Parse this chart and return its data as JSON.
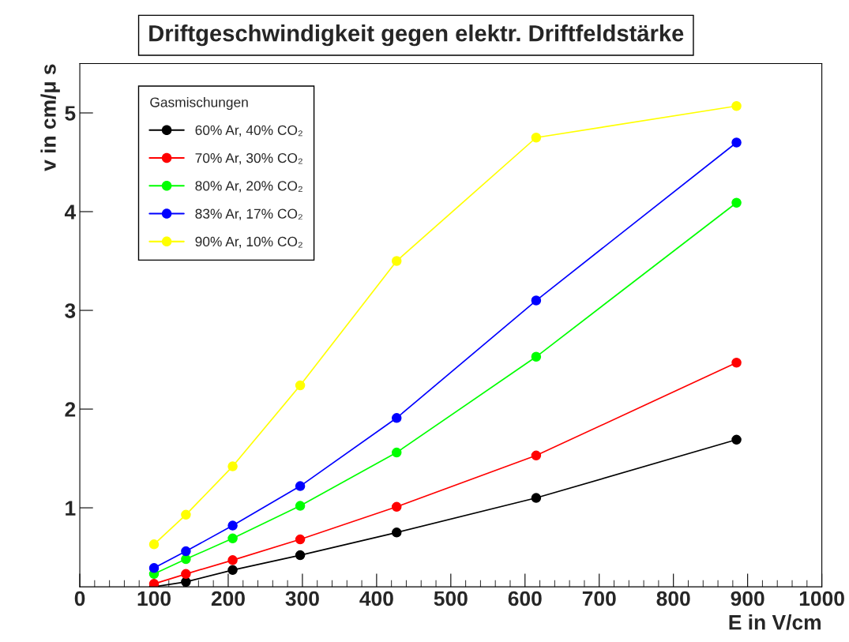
{
  "chart_data": {
    "type": "line",
    "title": "Driftgeschwindigkeit gegen elektr. Driftfeldstärke",
    "xlabel": "E in V/cm",
    "ylabel": "v in cm/μ s",
    "legend_title": "Gasmischungen",
    "x": [
      100,
      143,
      206,
      297,
      427,
      615,
      885
    ],
    "series": [
      {
        "name": "60% Ar, 40% CO₂",
        "color": "#000000",
        "values": [
          0.2,
          0.25,
          0.37,
          0.52,
          0.75,
          1.1,
          1.69
        ]
      },
      {
        "name": "70% Ar, 30% CO₂",
        "color": "#ff0000",
        "values": [
          0.23,
          0.33,
          0.47,
          0.68,
          1.01,
          1.53,
          2.47
        ]
      },
      {
        "name": "80% Ar, 20% CO₂",
        "color": "#00ff00",
        "values": [
          0.33,
          0.48,
          0.69,
          1.02,
          1.56,
          2.53,
          4.09
        ]
      },
      {
        "name": "83% Ar, 17% CO₂",
        "color": "#0000ff",
        "values": [
          0.39,
          0.56,
          0.82,
          1.22,
          1.91,
          3.1,
          4.7
        ]
      },
      {
        "name": "90% Ar, 10% CO₂",
        "color": "#ffff00",
        "values": [
          0.63,
          0.93,
          1.42,
          2.24,
          3.5,
          4.75,
          5.07
        ]
      }
    ],
    "xlim": [
      0,
      1000
    ],
    "ylim": [
      0.2,
      5.5
    ],
    "xticks": [
      0,
      100,
      200,
      300,
      400,
      500,
      600,
      700,
      800,
      900,
      1000
    ],
    "yticks": [
      1,
      2,
      3,
      4,
      5
    ],
    "grid": false,
    "legend": "top left",
    "marker": "circle",
    "line_style": "solid"
  }
}
